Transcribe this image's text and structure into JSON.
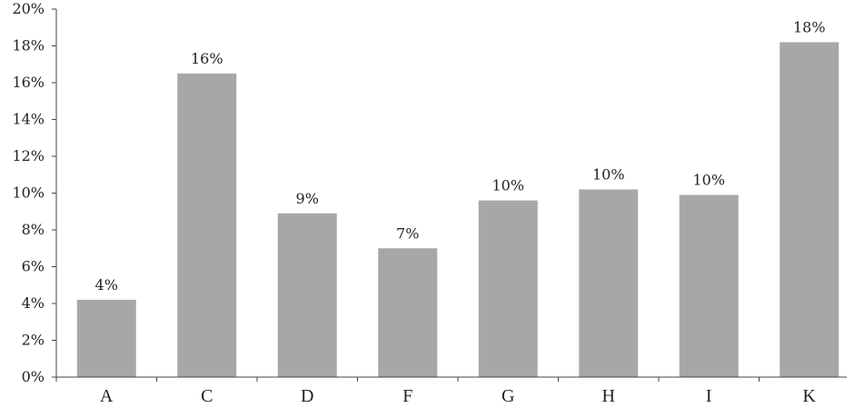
{
  "chart_data": {
    "type": "bar",
    "categories": [
      "A",
      "C",
      "D",
      "F",
      "G",
      "H",
      "I",
      "K"
    ],
    "values": [
      4.2,
      16.5,
      8.9,
      7.0,
      9.6,
      10.2,
      9.9,
      18.2
    ],
    "data_labels": [
      "4%",
      "16%",
      "9%",
      "7%",
      "10%",
      "10%",
      "10%",
      "18%"
    ],
    "y_ticks": [
      0,
      2,
      4,
      6,
      8,
      10,
      12,
      14,
      16,
      18,
      20
    ],
    "y_tick_labels": [
      "0%",
      "2%",
      "4%",
      "6%",
      "8%",
      "10%",
      "12%",
      "14%",
      "16%",
      "18%",
      "20%"
    ],
    "ylim": [
      0,
      20
    ],
    "title": "",
    "xlabel": "",
    "ylabel": "",
    "grid": false,
    "legend": "none",
    "bar_color": "#a6a8a8"
  }
}
